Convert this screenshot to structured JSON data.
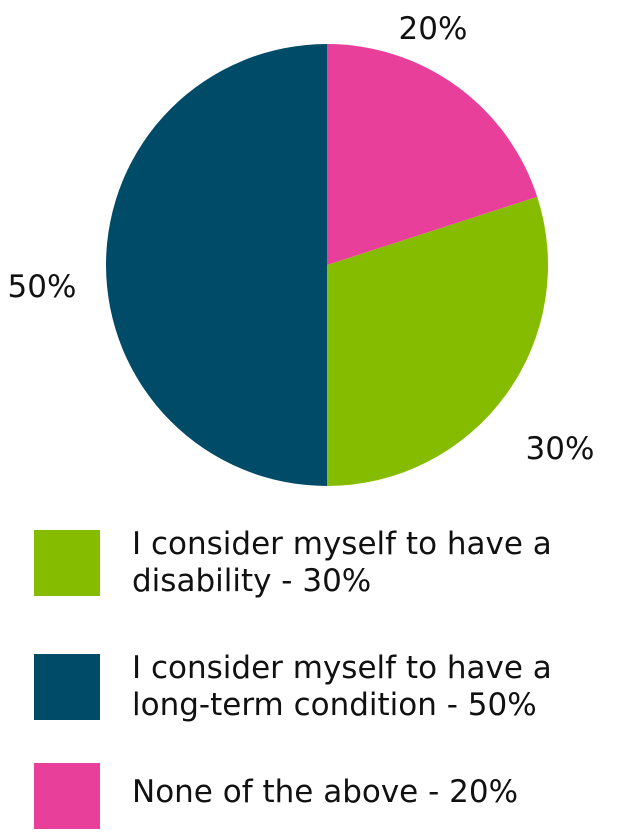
{
  "chart_data": {
    "type": "pie",
    "title": "",
    "slices": [
      {
        "label": "I consider myself to have a disability - 30%",
        "value": 30,
        "value_label": "30%",
        "color": "#86bc00"
      },
      {
        "label": "I consider myself to have a long-term condition - 50%",
        "value": 50,
        "value_label": "50%",
        "color": "#004c68"
      },
      {
        "label": "None of the above - 20%",
        "value": 20,
        "value_label": "20%",
        "color": "#e8409a"
      }
    ],
    "start_angle_deg": 0,
    "direction": "clockwise",
    "legend_position": "bottom"
  }
}
